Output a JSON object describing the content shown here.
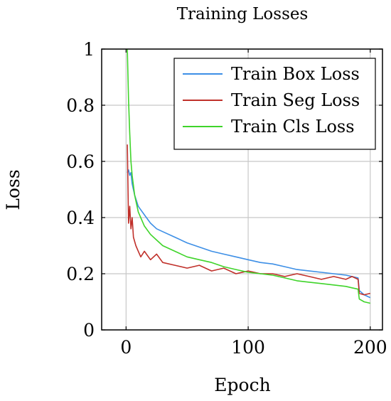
{
  "chart_data": {
    "type": "line",
    "title": "Training Losses",
    "xlabel": "Epoch",
    "ylabel": "Loss",
    "xlim": [
      -20,
      210
    ],
    "ylim": [
      0,
      1
    ],
    "xticks": [
      0,
      100,
      200
    ],
    "yticks": [
      0,
      0.2,
      0.4,
      0.6,
      0.8,
      1
    ],
    "ytick_labels": [
      "0",
      "0.2",
      "0.4",
      "0.6",
      "0.8",
      "1"
    ],
    "grid": true,
    "legend_position": "top-right",
    "series": [
      {
        "name": "Train Box Loss",
        "color": "#3d8fe6",
        "x": [
          1,
          2,
          3,
          4,
          5,
          7,
          10,
          15,
          20,
          25,
          30,
          40,
          50,
          60,
          70,
          80,
          90,
          100,
          110,
          120,
          130,
          140,
          150,
          160,
          170,
          180,
          185,
          190,
          191,
          195,
          200
        ],
        "y": [
          0.56,
          0.57,
          0.55,
          0.56,
          0.52,
          0.48,
          0.44,
          0.41,
          0.38,
          0.36,
          0.35,
          0.33,
          0.31,
          0.295,
          0.28,
          0.27,
          0.26,
          0.25,
          0.24,
          0.235,
          0.225,
          0.215,
          0.21,
          0.205,
          0.2,
          0.195,
          0.19,
          0.185,
          0.14,
          0.125,
          0.115
        ]
      },
      {
        "name": "Train Seg Loss",
        "color": "#c0302a",
        "x": [
          1,
          2,
          3,
          4,
          5,
          6,
          8,
          10,
          12,
          15,
          20,
          25,
          30,
          40,
          50,
          60,
          70,
          80,
          90,
          100,
          110,
          120,
          130,
          140,
          150,
          160,
          170,
          180,
          185,
          190,
          191,
          195,
          200
        ],
        "y": [
          0.66,
          0.38,
          0.44,
          0.36,
          0.4,
          0.33,
          0.3,
          0.28,
          0.26,
          0.28,
          0.25,
          0.27,
          0.24,
          0.23,
          0.22,
          0.23,
          0.21,
          0.22,
          0.2,
          0.21,
          0.2,
          0.2,
          0.19,
          0.2,
          0.19,
          0.18,
          0.19,
          0.18,
          0.19,
          0.18,
          0.13,
          0.125,
          0.13
        ]
      },
      {
        "name": "Train Cls Loss",
        "color": "#3fd42a",
        "x": [
          1,
          2,
          3,
          4,
          5,
          7,
          10,
          15,
          20,
          25,
          30,
          40,
          50,
          60,
          70,
          80,
          90,
          100,
          110,
          120,
          130,
          140,
          150,
          160,
          170,
          180,
          185,
          190,
          191,
          195,
          200
        ],
        "y": [
          1.0,
          0.82,
          0.7,
          0.6,
          0.55,
          0.48,
          0.42,
          0.37,
          0.34,
          0.32,
          0.3,
          0.28,
          0.26,
          0.25,
          0.24,
          0.225,
          0.215,
          0.205,
          0.2,
          0.195,
          0.185,
          0.175,
          0.17,
          0.165,
          0.16,
          0.155,
          0.15,
          0.145,
          0.11,
          0.1,
          0.095
        ]
      }
    ]
  }
}
